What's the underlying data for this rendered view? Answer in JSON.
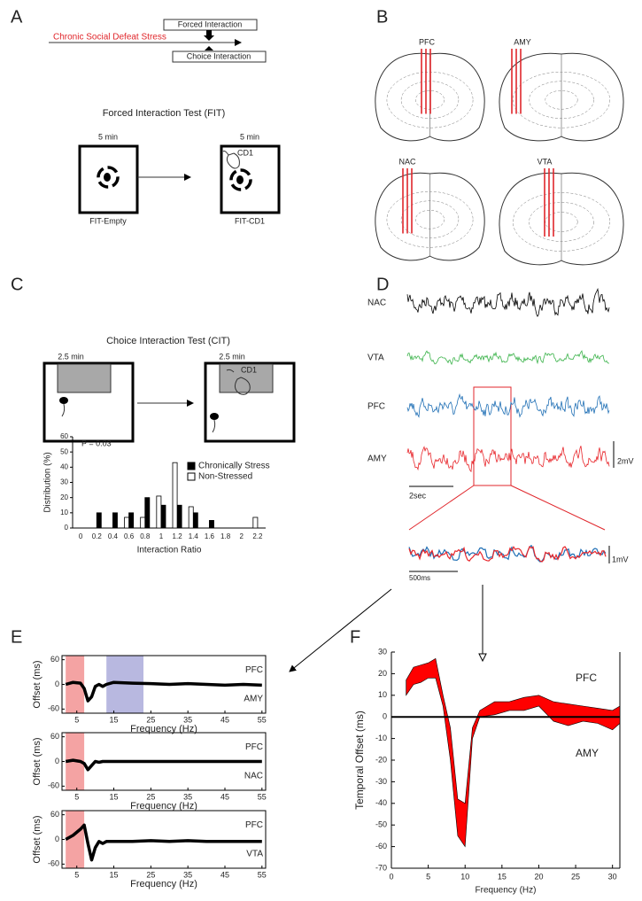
{
  "panel_labels": [
    "A",
    "B",
    "C",
    "D",
    "E",
    "F"
  ],
  "panel_a": {
    "timeline_stress": "Chronic Social Defeat Stress",
    "forced_box": "Forced Interaction",
    "choice_box": "Choice Interaction",
    "title": "Forced Interaction Test (FIT)",
    "duration_left": "5 min",
    "duration_right": "5 min",
    "intruder": "CD1",
    "label_left": "FIT-Empty",
    "label_right": "FIT-CD1"
  },
  "panel_b": {
    "regions": [
      "PFC",
      "AMY",
      "NAC",
      "VTA"
    ]
  },
  "panel_c": {
    "title": "Choice Interaction Test (CIT)",
    "duration_left": "2.5 min",
    "duration_right": "2.5 min",
    "intruder": "CD1"
  },
  "panel_d": {
    "traces": [
      "NAC",
      "VTA",
      "PFC",
      "AMY"
    ],
    "amplitude_scale": "2mV",
    "time_scale": "2sec",
    "zoom_amplitude_scale": "1mV",
    "zoom_time_scale": "500ms"
  },
  "chart_data": [
    {
      "type": "bar",
      "annotation": "P = 0.03",
      "ylabel": "Distribution (%)",
      "xlabel": "Interaction Ratio",
      "categories": [
        "0",
        "0.2",
        "0.4",
        "0.6",
        "0.8",
        "1",
        "1.2",
        "1.4",
        "1.6",
        "1.8",
        "2",
        "2.2"
      ],
      "series": [
        {
          "name": "Chronically Stress",
          "color": "#000000",
          "values": [
            0,
            10,
            10,
            10,
            20,
            15,
            15,
            10,
            5,
            0,
            0,
            0
          ]
        },
        {
          "name": "Non-Stressed",
          "color": "#ffffff",
          "values": [
            0,
            0,
            0,
            7,
            7,
            21,
            43,
            14,
            0,
            0,
            0,
            7
          ]
        }
      ],
      "ylim": [
        0,
        60
      ],
      "yticks": [
        0,
        10,
        20,
        30,
        40,
        50,
        60
      ],
      "legend": "upper right"
    },
    {
      "type": "line",
      "xlabel": "Frequency (Hz)",
      "ylabel": "Offset (ms)",
      "region_labels": [
        "PFC",
        "AMY"
      ],
      "x": [
        2,
        4,
        6,
        7,
        8,
        9,
        10,
        11,
        12,
        13,
        15,
        20,
        25,
        30,
        35,
        40,
        45,
        50,
        55
      ],
      "series": [
        {
          "color": "#000000",
          "values": [
            0,
            5,
            3,
            -10,
            -40,
            -30,
            -5,
            0,
            -5,
            0,
            5,
            3,
            2,
            0,
            2,
            0,
            -2,
            0,
            -2
          ]
        }
      ],
      "bands": [
        {
          "range": [
            2,
            7
          ],
          "color": "#f4a3a3"
        },
        {
          "range": [
            13,
            23
          ],
          "color": "#b8b8e0"
        }
      ],
      "xlim": [
        1,
        56
      ],
      "xticks": [
        5,
        15,
        25,
        35,
        45,
        55
      ],
      "ylim": [
        -70,
        70
      ],
      "yticks": [
        60,
        0,
        -60
      ]
    },
    {
      "type": "line",
      "xlabel": "Frequency (Hz)",
      "ylabel": "Offset (ms)",
      "region_labels": [
        "PFC",
        "NAC"
      ],
      "x": [
        2,
        4,
        6,
        7,
        8,
        9,
        10,
        11,
        12,
        13,
        15,
        20,
        25,
        30,
        35,
        40,
        45,
        50,
        55
      ],
      "series": [
        {
          "color": "#000000",
          "values": [
            0,
            3,
            0,
            -5,
            -20,
            -10,
            0,
            -2,
            0,
            0,
            0,
            0,
            0,
            0,
            0,
            0,
            0,
            0,
            0
          ]
        }
      ],
      "bands": [
        {
          "range": [
            2,
            7
          ],
          "color": "#f4a3a3"
        }
      ],
      "xlim": [
        1,
        56
      ],
      "xticks": [
        5,
        15,
        25,
        35,
        45,
        55
      ],
      "ylim": [
        -70,
        70
      ],
      "yticks": [
        60,
        0,
        -60
      ]
    },
    {
      "type": "line",
      "xlabel": "Frequency (Hz)",
      "ylabel": "Offset (ms)",
      "region_labels": [
        "PFC",
        "VTA"
      ],
      "x": [
        2,
        4,
        6,
        7,
        8,
        9,
        10,
        11,
        12,
        13,
        15,
        20,
        25,
        30,
        35,
        40,
        45,
        50,
        55
      ],
      "series": [
        {
          "color": "#000000",
          "values": [
            0,
            10,
            25,
            35,
            -10,
            -50,
            -20,
            -5,
            -10,
            -5,
            -5,
            -5,
            -3,
            -5,
            -3,
            -5,
            -5,
            -5,
            -5
          ]
        }
      ],
      "bands": [
        {
          "range": [
            2,
            7
          ],
          "color": "#f4a3a3"
        }
      ],
      "xlim": [
        1,
        56
      ],
      "xticks": [
        5,
        15,
        25,
        35,
        45,
        55
      ],
      "ylim": [
        -70,
        70
      ],
      "yticks": [
        60,
        0,
        -60
      ]
    },
    {
      "type": "area",
      "xlabel": "Frequency (Hz)",
      "ylabel": "Temporal Offset (ms)",
      "region_labels": [
        "PFC",
        "AMY"
      ],
      "color": "#ff0000",
      "x": [
        2,
        3,
        4,
        5,
        6,
        7,
        8,
        9,
        10,
        11,
        12,
        14,
        16,
        18,
        20,
        22,
        24,
        26,
        28,
        30,
        31
      ],
      "upper": [
        17,
        23,
        24,
        25,
        27,
        10,
        -5,
        -38,
        -40,
        -5,
        3,
        7,
        7,
        9,
        10,
        7,
        6,
        5,
        4,
        3,
        5
      ],
      "lower": [
        10,
        15,
        16,
        18,
        18,
        5,
        -20,
        -55,
        -60,
        -10,
        0,
        1,
        3,
        3,
        5,
        -2,
        -4,
        -2,
        -3,
        -6,
        -3
      ],
      "xlim": [
        0,
        31
      ],
      "xticks": [
        0,
        5,
        10,
        15,
        20,
        25,
        30
      ],
      "ylim": [
        -70,
        30
      ],
      "yticks": [
        -70,
        -60,
        -50,
        -40,
        -30,
        -20,
        -10,
        0,
        10,
        20,
        30
      ]
    }
  ]
}
